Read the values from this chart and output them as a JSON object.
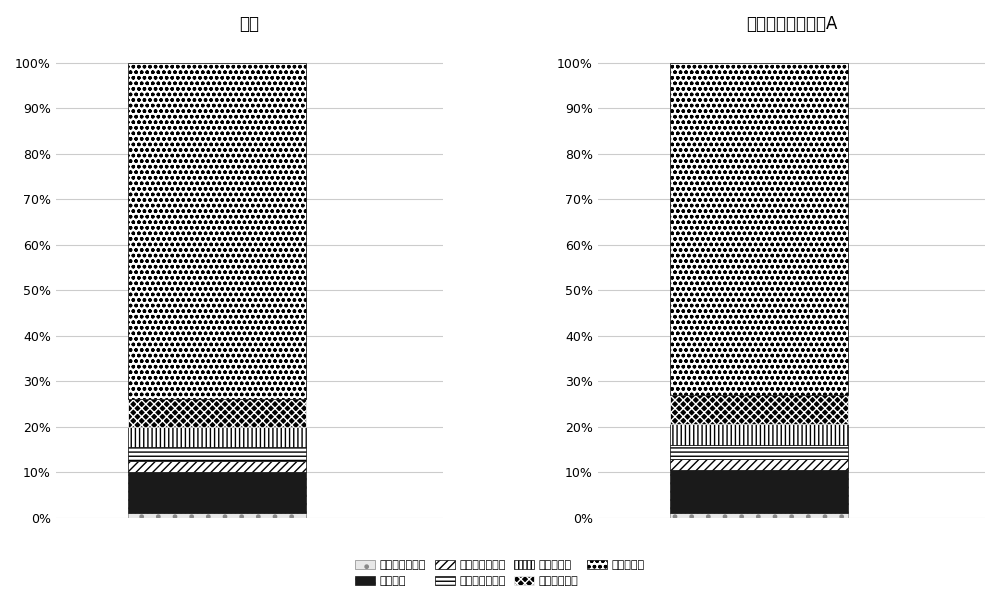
{
  "title1": "空白",
  "title2": "复合微生物驱油剂A",
  "series": [
    {
      "label": "凝固芽孢杆菌属",
      "values": [
        1.0,
        1.0
      ],
      "hatch": ".",
      "facecolor": "#e8e8e8",
      "edgecolor": "#888888"
    },
    {
      "label": "沙雷氏菌",
      "values": [
        9.0,
        9.5
      ],
      "hatch": "....",
      "facecolor": "#1a1a1a",
      "edgecolor": "#1a1a1a"
    },
    {
      "label": "未分类肠杆菌科",
      "values": [
        2.5,
        2.5
      ],
      "hatch": "////",
      "facecolor": "white",
      "edgecolor": "black"
    },
    {
      "label": "热硫还原杆菌属",
      "values": [
        3.0,
        3.0
      ],
      "hatch": "----",
      "facecolor": "white",
      "edgecolor": "black"
    },
    {
      "label": "脱硫状菌属",
      "values": [
        4.5,
        4.5
      ],
      "hatch": "||||",
      "facecolor": "white",
      "edgecolor": "black"
    },
    {
      "label": "硫磺单胞菌属",
      "values": [
        6.0,
        6.5
      ],
      "hatch": "xxxx",
      "facecolor": "black",
      "edgecolor": "white"
    },
    {
      "label": "弓形杆菌属",
      "values": [
        74.0,
        73.0
      ],
      "hatch": "ooo",
      "facecolor": "white",
      "edgecolor": "black"
    }
  ],
  "background_color": "#ffffff",
  "grid_color": "#cccccc",
  "title_fontsize": 12,
  "tick_fontsize": 9,
  "legend_fontsize": 8
}
